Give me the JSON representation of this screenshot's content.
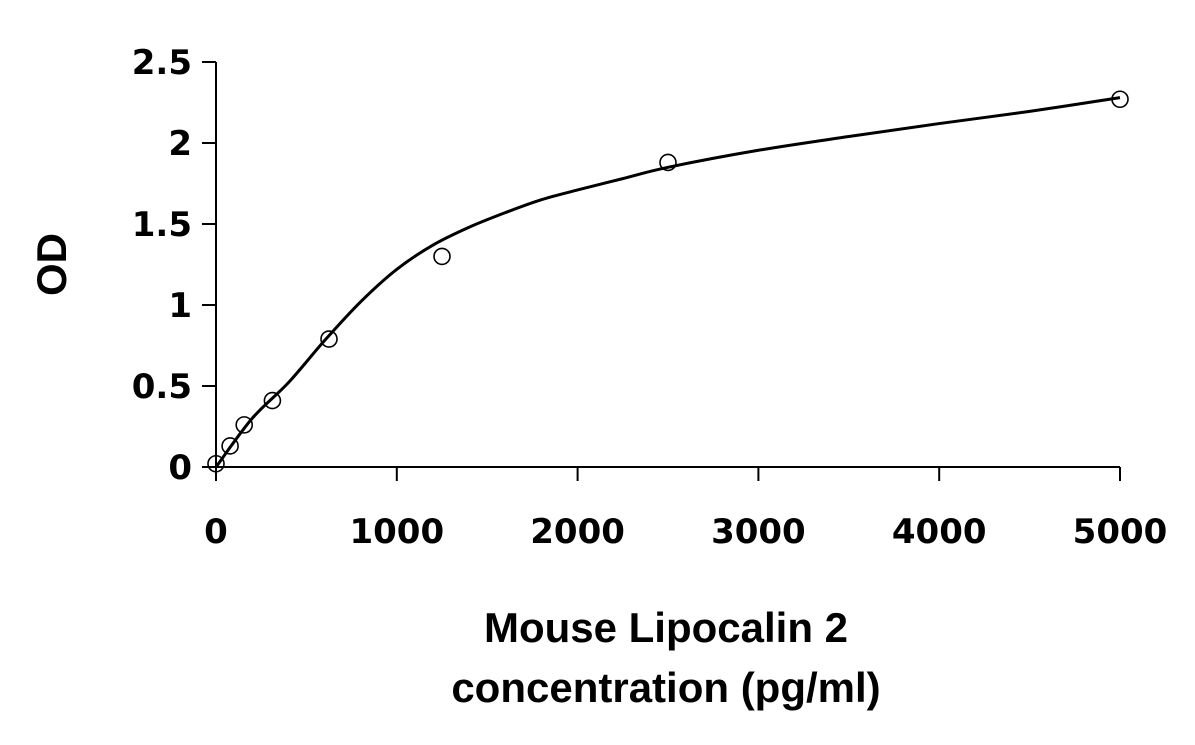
{
  "chart_data": {
    "type": "scatter",
    "title": "",
    "xlabel_lines": [
      "Mouse Lipocalin 2",
      "concentration (pg/ml)"
    ],
    "ylabel": "OD",
    "xlim": [
      0,
      5000
    ],
    "ylim": [
      0,
      2.5
    ],
    "x_ticks": [
      0,
      1000,
      2000,
      3000,
      4000,
      5000
    ],
    "x_tick_labels": [
      "0",
      "1000",
      "2000",
      "3000",
      "4000",
      "5000"
    ],
    "y_ticks": [
      0,
      0.5,
      1,
      1.5,
      2,
      2.5
    ],
    "y_tick_labels": [
      "0",
      "0.5",
      "1",
      "1.5",
      "2",
      "2.5"
    ],
    "grid": false,
    "legend": "none",
    "series": [
      {
        "style": "open-circle-markers",
        "x": [
          0,
          78,
          156,
          312,
          625,
          1250,
          2500,
          5000
        ],
        "y": [
          0.02,
          0.13,
          0.26,
          0.41,
          0.79,
          1.3,
          1.88,
          2.27
        ]
      },
      {
        "style": "smooth-fit-line",
        "x": [
          0,
          200,
          400,
          600,
          800,
          1000,
          1200,
          1400,
          1600,
          1800,
          2000,
          2250,
          2500,
          3000,
          3500,
          4000,
          4500,
          5000
        ],
        "y": [
          0.0,
          0.3,
          0.52,
          0.78,
          1.02,
          1.22,
          1.37,
          1.48,
          1.57,
          1.65,
          1.71,
          1.78,
          1.85,
          1.955,
          2.04,
          2.12,
          2.195,
          2.28
        ]
      }
    ],
    "colors": {
      "axis": "#000000",
      "line": "#000000",
      "marker_stroke": "#000000",
      "marker_fill": "#ffffff"
    }
  }
}
